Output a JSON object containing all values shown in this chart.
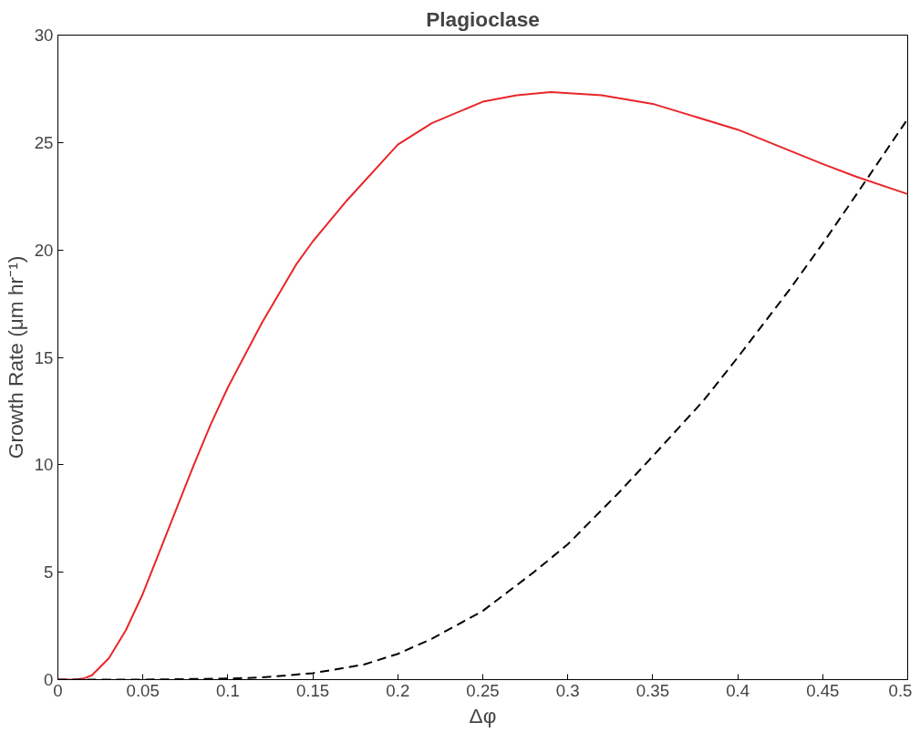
{
  "chart_data": {
    "type": "line",
    "title": "Plagioclase",
    "xlabel": "Δφ",
    "ylabel": "Growth Rate (μm hr⁻¹)",
    "xlim": [
      0,
      0.5
    ],
    "ylim": [
      0,
      30
    ],
    "xticks": [
      0,
      0.05,
      0.1,
      0.15,
      0.2,
      0.25,
      0.3,
      0.35,
      0.4,
      0.45,
      0.5
    ],
    "yticks": [
      0,
      5,
      10,
      15,
      20,
      25,
      30
    ],
    "grid": false,
    "marker": "none",
    "series": [
      {
        "color": "#e8262b",
        "line_style": "solid",
        "x": [
          0,
          0.01,
          0.015,
          0.02,
          0.03,
          0.04,
          0.05,
          0.06,
          0.07,
          0.08,
          0.09,
          0.1,
          0.12,
          0.14,
          0.15,
          0.17,
          0.2,
          0.22,
          0.25,
          0.27,
          0.29,
          0.32,
          0.35,
          0.4,
          0.45,
          0.47,
          0.5
        ],
        "values": [
          0,
          0,
          0.05,
          0.2,
          1,
          2.3,
          4,
          6,
          8,
          10,
          11.9,
          13.6,
          16.6,
          19.3,
          20.4,
          22.3,
          24.9,
          25.9,
          26.9,
          27.2,
          27.35,
          27.2,
          26.8,
          25.6,
          24.0,
          23.4,
          22.6
        ]
      },
      {
        "color": "#000000",
        "line_style": "dashed",
        "x": [
          0,
          0.05,
          0.1,
          0.12,
          0.15,
          0.18,
          0.2,
          0.22,
          0.25,
          0.28,
          0.3,
          0.33,
          0.35,
          0.38,
          0.4,
          0.43,
          0.45,
          0.47,
          0.5
        ],
        "values": [
          0,
          0,
          0.05,
          0.1,
          0.3,
          0.7,
          1.2,
          1.9,
          3.2,
          5.0,
          6.3,
          8.7,
          10.4,
          13.0,
          15.0,
          18.1,
          20.3,
          22.6,
          26.1
        ]
      }
    ]
  }
}
